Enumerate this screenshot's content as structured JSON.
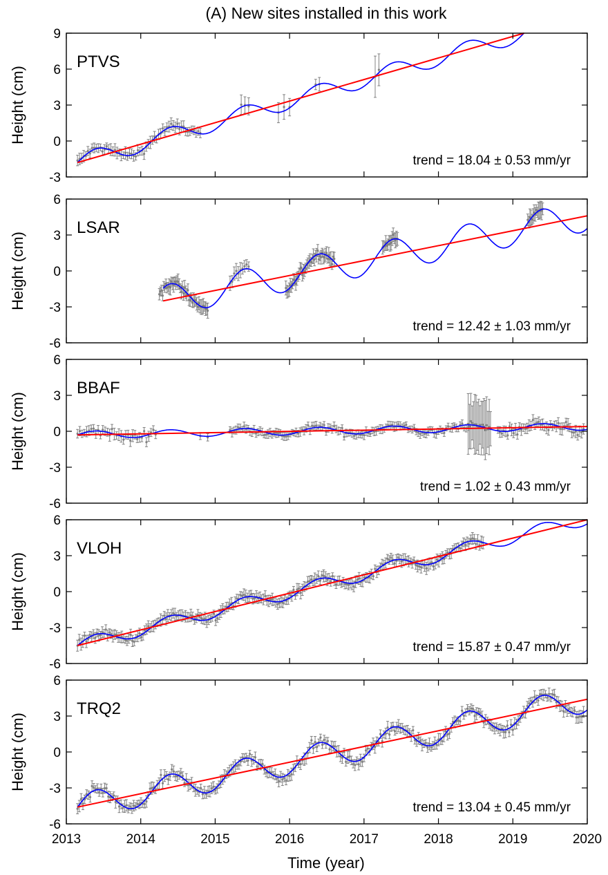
{
  "figure_title": "(A) New sites installed in this work",
  "xlabel": "Time (year)",
  "colors": {
    "data": "#808080",
    "model": "#0000ff",
    "trend": "#ff0000",
    "axes": "#000000"
  },
  "chart_data": [
    {
      "type": "scatter",
      "site": "PTVS",
      "ylabel": "Height (cm)",
      "xlim": [
        2013,
        2020
      ],
      "ylim": [
        -3,
        9
      ],
      "yticks": [
        "-3",
        "0",
        "3",
        "6",
        "9"
      ],
      "xticks": [
        "2013",
        "2014",
        "2015",
        "2016",
        "2017",
        "2018",
        "2019",
        "2020"
      ],
      "trend_label": "trend = 18.04 ± 0.53 mm/yr",
      "trend": {
        "x": [
          2013.15,
          2019.15
        ],
        "y": [
          -1.8,
          9.0
        ]
      },
      "seasonal": {
        "amplitude_cm": 0.7,
        "phase_year": 0.15
      },
      "model_range": [
        2013.15,
        2019.15
      ],
      "segments": [
        {
          "x": [
            2013.15,
            2014.8
          ],
          "n": 60,
          "noise": 0.35,
          "err": 0.4
        },
        {
          "x": [
            2015.35,
            2015.45
          ],
          "n": 3,
          "noise": 0.3,
          "err": 0.8
        },
        {
          "x": [
            2015.85,
            2016.0
          ],
          "n": 3,
          "noise": 0.3,
          "err": 0.8
        },
        {
          "x": [
            2016.35,
            2016.4
          ],
          "n": 2,
          "noise": 0.2,
          "err": 0.6
        },
        {
          "x": [
            2017.15,
            2017.2
          ],
          "n": 2,
          "noise": 0.3,
          "err": 1.6
        }
      ]
    },
    {
      "type": "scatter",
      "site": "LSAR",
      "ylabel": "Height (cm)",
      "xlim": [
        2013,
        2020
      ],
      "ylim": [
        -6,
        6
      ],
      "yticks": [
        "-6",
        "-3",
        "0",
        "3",
        "6"
      ],
      "xticks": [
        "2013",
        "2014",
        "2015",
        "2016",
        "2017",
        "2018",
        "2019",
        "2020"
      ],
      "trend_label": "trend = 12.42 ± 1.03 mm/yr",
      "trend": {
        "x": [
          2014.3,
          2020.0
        ],
        "y": [
          -2.5,
          4.6
        ]
      },
      "seasonal": {
        "amplitude_cm": 1.3,
        "phase_year": 0.15
      },
      "model_range": [
        2014.3,
        2020.0
      ],
      "segments": [
        {
          "x": [
            2014.25,
            2014.9
          ],
          "n": 45,
          "noise": 0.5,
          "err": 0.5
        },
        {
          "x": [
            2015.2,
            2015.45
          ],
          "n": 10,
          "noise": 0.4,
          "err": 0.5
        },
        {
          "x": [
            2015.95,
            2016.6
          ],
          "n": 45,
          "noise": 0.4,
          "err": 0.5
        },
        {
          "x": [
            2017.25,
            2017.45
          ],
          "n": 15,
          "noise": 0.3,
          "err": 0.5
        },
        {
          "x": [
            2019.2,
            2019.4
          ],
          "n": 15,
          "noise": 0.4,
          "err": 0.6
        }
      ]
    },
    {
      "type": "scatter",
      "site": "BBAF",
      "ylabel": "Height (cm)",
      "xlim": [
        2013,
        2020
      ],
      "ylim": [
        -6,
        6
      ],
      "yticks": [
        "-6",
        "-3",
        "0",
        "3",
        "6"
      ],
      "xticks": [
        "2013",
        "2014",
        "2015",
        "2016",
        "2017",
        "2018",
        "2019",
        "2020"
      ],
      "trend_label": "trend = 1.02 ± 0.43 mm/yr",
      "trend": {
        "x": [
          2013.15,
          2020.0
        ],
        "y": [
          -0.3,
          0.4
        ]
      },
      "seasonal": {
        "amplitude_cm": 0.3,
        "phase_year": 0.15
      },
      "model_range": [
        2013.15,
        2020.0
      ],
      "segments": [
        {
          "x": [
            2013.15,
            2014.2
          ],
          "n": 35,
          "noise": 0.4,
          "err": 0.4
        },
        {
          "x": [
            2014.8,
            2014.9
          ],
          "n": 2,
          "noise": 0.2,
          "err": 0.3
        },
        {
          "x": [
            2015.2,
            2018.4
          ],
          "n": 120,
          "noise": 0.3,
          "err": 0.3
        },
        {
          "x": [
            2018.4,
            2018.7
          ],
          "n": 18,
          "noise": 0.3,
          "err": 2.0
        },
        {
          "x": [
            2018.8,
            2019.95
          ],
          "n": 45,
          "noise": 0.45,
          "err": 0.4
        }
      ]
    },
    {
      "type": "scatter",
      "site": "VLOH",
      "ylabel": "Height (cm)",
      "xlim": [
        2013,
        2020
      ],
      "ylim": [
        -6,
        6
      ],
      "yticks": [
        "-6",
        "-3",
        "0",
        "3",
        "6"
      ],
      "xticks": [
        "2013",
        "2014",
        "2015",
        "2016",
        "2017",
        "2018",
        "2019",
        "2020"
      ],
      "trend_label": "trend = 15.87 ± 0.47 mm/yr",
      "trend": {
        "x": [
          2013.15,
          2020.0
        ],
        "y": [
          -4.5,
          6.1
        ]
      },
      "seasonal": {
        "amplitude_cm": 0.55,
        "phase_year": 0.15
      },
      "model_range": [
        2013.15,
        2020.0
      ],
      "segments": [
        {
          "x": [
            2013.15,
            2018.6
          ],
          "n": 230,
          "noise": 0.35,
          "err": 0.4
        }
      ]
    },
    {
      "type": "scatter",
      "site": "TRQ2",
      "ylabel": "Height (cm)",
      "xlim": [
        2013,
        2020
      ],
      "ylim": [
        -6,
        6
      ],
      "yticks": [
        "-6",
        "-3",
        "0",
        "3",
        "6"
      ],
      "xticks": [
        "2013",
        "2014",
        "2015",
        "2016",
        "2017",
        "2018",
        "2019",
        "2020"
      ],
      "trend_label": "trend = 13.04 ± 0.45 mm/yr",
      "trend": {
        "x": [
          2013.15,
          2020.0
        ],
        "y": [
          -4.6,
          4.4
        ]
      },
      "seasonal": {
        "amplitude_cm": 1.1,
        "phase_year": 0.15
      },
      "model_range": [
        2013.15,
        2020.0
      ],
      "segments": [
        {
          "x": [
            2013.15,
            2019.95
          ],
          "n": 280,
          "noise": 0.4,
          "err": 0.4
        }
      ]
    }
  ]
}
